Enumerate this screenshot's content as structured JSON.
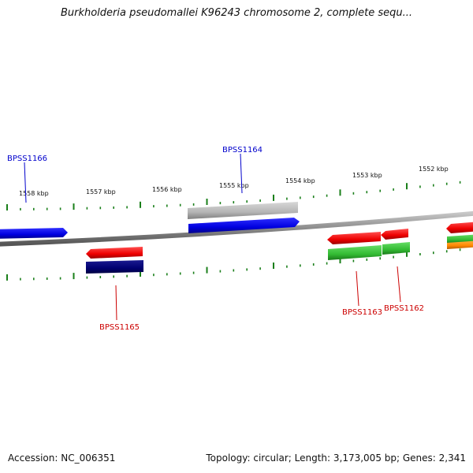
{
  "title": "Burkholderia pseudomallei K96243 chromosome 2, complete sequ...",
  "footer": {
    "accession": "Accession: NC_006351",
    "summary": "Topology: circular; Length: 3,173,005 bp; Genes: 2,341"
  },
  "scale": {
    "unit": "kbp",
    "major_ticks": [
      "1552 kbp",
      "1553 kbp",
      "1554 kbp",
      "1555 kbp",
      "1556 kbp",
      "1557 kbp",
      "1558 kbp"
    ]
  },
  "gene_labels": {
    "top": [
      "BPSS1166",
      "BPSS1164"
    ],
    "bottom": [
      "BPSS1165",
      "BPSS1163",
      "BPSS1162"
    ]
  },
  "colors": {
    "forward_label": "#0000cc",
    "reverse_label": "#cc0000",
    "tick": "#1a7f1a",
    "backbone": "#8a8a8a",
    "forward_cds": "#0000ee",
    "forward_gene": "#b8b8b8",
    "reverse_cds": "#ee0000",
    "reverse_gene_dark": "#00007a",
    "reverse_gene_green": "#33bb33",
    "reverse_gene_orange": "#ff8800"
  }
}
